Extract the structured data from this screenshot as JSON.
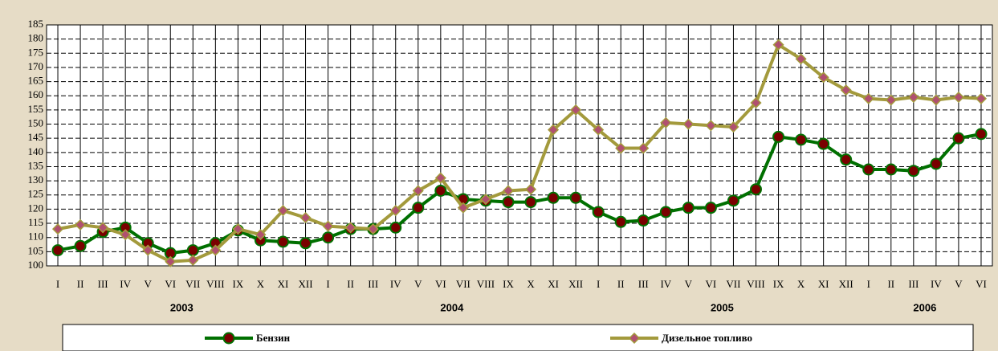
{
  "chart_data": {
    "type": "line",
    "categories": [
      "I",
      "II",
      "III",
      "IV",
      "V",
      "VI",
      "VII",
      "VIII",
      "IX",
      "X",
      "XI",
      "XII",
      "I",
      "II",
      "III",
      "IV",
      "V",
      "VI",
      "VII",
      "VIII",
      "IX",
      "X",
      "XI",
      "XII",
      "I",
      "II",
      "III",
      "IV",
      "V",
      "VI",
      "VII",
      "VIII",
      "IX",
      "X",
      "XI",
      "XII",
      "I",
      "II",
      "III",
      "IV",
      "V",
      "VI"
    ],
    "years": [
      "2003",
      "2004",
      "2005",
      "2006"
    ],
    "series": [
      {
        "name": "Бензин",
        "color": "#007000",
        "marker": "#7a0000",
        "values": [
          105.5,
          107,
          112,
          113.5,
          108,
          104.5,
          105.5,
          108,
          112.5,
          109,
          108.5,
          108,
          110,
          113,
          113,
          113.5,
          120.5,
          126.5,
          123.5,
          123,
          122.5,
          122.5,
          124,
          124,
          119,
          115.5,
          116,
          119,
          120.5,
          120.5,
          123,
          127,
          145.5,
          144.5,
          143,
          137.5,
          134,
          134,
          133.5,
          136,
          145,
          146.5
        ]
      },
      {
        "name": "Дизельное топливо",
        "color": "#a39a3c",
        "marker": "#b05070",
        "values": [
          113,
          114.5,
          113.5,
          111,
          105.5,
          101.5,
          102,
          105.5,
          113,
          111,
          119.5,
          117,
          114,
          113.5,
          113,
          119.5,
          126.5,
          131,
          120.5,
          123.5,
          126.5,
          127,
          148,
          155,
          148,
          141.5,
          141.5,
          150.5,
          150,
          149.5,
          149,
          157.5,
          178,
          173,
          166.5,
          162,
          159,
          158.5,
          159.5,
          158.5,
          159.5,
          159
        ]
      }
    ],
    "ylim": [
      100,
      185
    ],
    "yticks": [
      100,
      105,
      110,
      115,
      120,
      125,
      130,
      135,
      140,
      145,
      150,
      155,
      160,
      165,
      170,
      175,
      180,
      185
    ],
    "grid": true
  }
}
